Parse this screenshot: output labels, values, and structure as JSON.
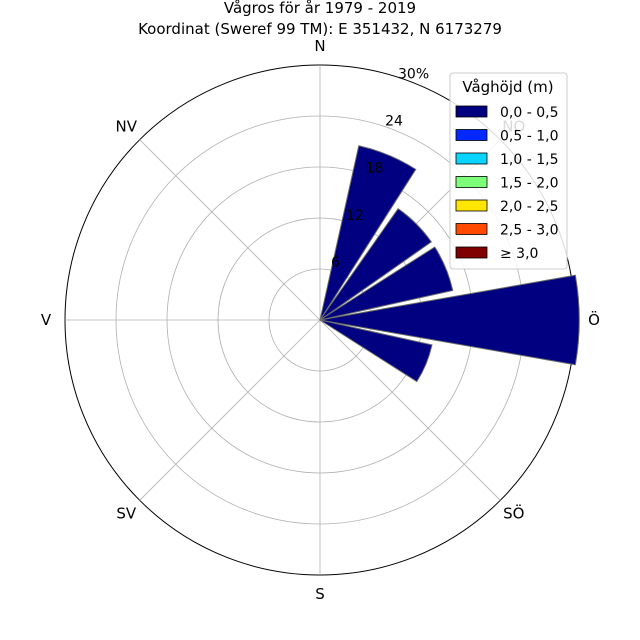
{
  "chart_data": {
    "type": "windrose",
    "title": "Vågros för år 1979 - 2019",
    "subtitle": "Koordinat (Sweref 99 TM): E 351432, N 6173279",
    "directions": [
      "N",
      "NO",
      "Ö",
      "SÖ",
      "S",
      "SV",
      "V",
      "NV"
    ],
    "radial_ticks": [
      "6",
      "12",
      "18",
      "24",
      "30%"
    ],
    "radial_max": 30,
    "sector_width_deg": 22.5,
    "sectors": [
      {
        "angle_deg": 22.5,
        "value": 21.0
      },
      {
        "angle_deg": 45.0,
        "value": 16.0
      },
      {
        "angle_deg": 67.5,
        "value": 16.0
      },
      {
        "angle_deg": 90.0,
        "value": 30.5
      },
      {
        "angle_deg": 112.5,
        "value": 13.5
      }
    ],
    "legend": {
      "title": "Våghöjd (m)",
      "placement": "top-right",
      "entries": [
        {
          "label": "0,0 - 0,5",
          "color": "#000080"
        },
        {
          "label": "0,5 - 1,0",
          "color": "#0028ff"
        },
        {
          "label": "1,0 - 1,5",
          "color": "#0ad4ff"
        },
        {
          "label": "1,5 - 2,0",
          "color": "#7dff7a"
        },
        {
          "label": "2,0 - 2,5",
          "color": "#ffe600"
        },
        {
          "label": "2,5 - 3,0",
          "color": "#ff4a00"
        },
        {
          "label": "≥ 3,0",
          "color": "#800000"
        }
      ]
    },
    "bar_color": "#000080",
    "grid": true
  }
}
